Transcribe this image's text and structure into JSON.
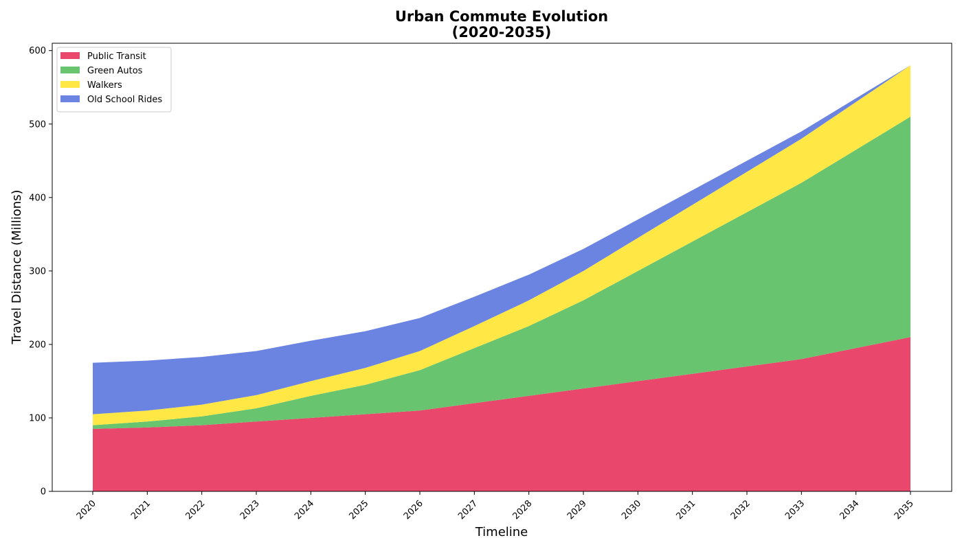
{
  "chart_data": {
    "type": "area",
    "stacked": true,
    "title_lines": [
      "Urban Commute Evolution",
      "(2020-2035)"
    ],
    "xlabel": "Timeline",
    "ylabel": "Travel Distance (Millions)",
    "x": [
      "2020",
      "2021",
      "2022",
      "2023",
      "2024",
      "2025",
      "2026",
      "2027",
      "2028",
      "2029",
      "2030",
      "2031",
      "2032",
      "2033",
      "2034",
      "2035"
    ],
    "ylim": [
      0,
      610
    ],
    "yticks": [
      0,
      100,
      200,
      300,
      400,
      500,
      600
    ],
    "legend_position": "top-left",
    "grid": false,
    "series": [
      {
        "name": "Public Transit",
        "color": "#e8375f",
        "values": [
          85,
          87,
          90,
          95,
          100,
          105,
          110,
          120,
          130,
          140,
          150,
          160,
          170,
          180,
          195,
          210
        ]
      },
      {
        "name": "Green Autos",
        "color": "#5bbf63",
        "values": [
          5,
          8,
          12,
          18,
          30,
          40,
          55,
          75,
          95,
          120,
          150,
          180,
          210,
          240,
          270,
          300
        ]
      },
      {
        "name": "Walkers",
        "color": "#ffe536",
        "values": [
          15,
          15,
          16,
          18,
          20,
          23,
          26,
          30,
          35,
          40,
          45,
          50,
          55,
          60,
          65,
          70
        ]
      },
      {
        "name": "Old School Rides",
        "color": "#5f79de",
        "values": [
          70,
          68,
          65,
          60,
          55,
          50,
          45,
          40,
          35,
          30,
          25,
          20,
          15,
          10,
          5,
          0
        ]
      }
    ]
  }
}
